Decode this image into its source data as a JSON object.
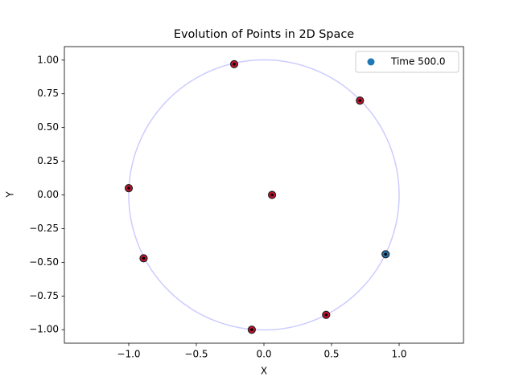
{
  "chart_data": {
    "type": "scatter",
    "title": "Evolution of Points in 2D Space",
    "x_label": "X",
    "y_label": "Y",
    "xlim": [
      -1.476,
      1.476
    ],
    "ylim": [
      -1.1,
      1.1
    ],
    "xticks": [
      {
        "value": -1.0,
        "label": "−1.0"
      },
      {
        "value": -0.5,
        "label": "−0.5"
      },
      {
        "value": 0,
        "label": "0.0"
      },
      {
        "value": 0.5,
        "label": "0.5"
      },
      {
        "value": 1.0,
        "label": "1.0"
      }
    ],
    "yticks": [
      {
        "value": -1.0,
        "label": "−1.00"
      },
      {
        "value": -0.75,
        "label": "−0.75"
      },
      {
        "value": -0.5,
        "label": "−0.50"
      },
      {
        "value": -0.25,
        "label": "−0.25"
      },
      {
        "value": 0,
        "label": "0.00"
      },
      {
        "value": 0.25,
        "label": "0.25"
      },
      {
        "value": 0.5,
        "label": "0.50"
      },
      {
        "value": 0.75,
        "label": "0.75"
      },
      {
        "value": 1.0,
        "label": "1.00"
      }
    ],
    "circle_radius": 1,
    "circle_color": "#ccccff",
    "legend": "upper right",
    "grid": false,
    "series": [
      {
        "name": "Time 500.0",
        "color": "#1f77b4",
        "x": [
          0.9
        ],
        "y": [
          -0.44
        ]
      },
      {
        "color": "#c8102e",
        "x": [
          -0.22,
          0.71,
          -1.0,
          -0.89,
          -0.09,
          0.46,
          0.06
        ],
        "y": [
          0.97,
          0.7,
          0.05,
          -0.47,
          -1.0,
          -0.89,
          0.0
        ]
      }
    ]
  }
}
